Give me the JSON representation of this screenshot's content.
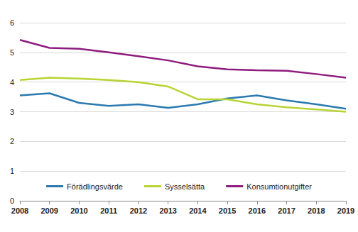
{
  "chart_data": {
    "type": "line",
    "categories": [
      "2008",
      "2009",
      "2010",
      "2011",
      "2012",
      "2013",
      "2014",
      "2015",
      "2016",
      "2017",
      "2018",
      "2019"
    ],
    "series": [
      {
        "name": "Förädlingsvärde",
        "color": "#2a7ab0",
        "values": [
          3.55,
          3.62,
          3.3,
          3.2,
          3.25,
          3.13,
          3.25,
          3.45,
          3.55,
          3.38,
          3.25,
          3.1
        ]
      },
      {
        "name": "Sysselsätta",
        "color": "#b7d433",
        "values": [
          4.07,
          4.15,
          4.12,
          4.07,
          4.0,
          3.85,
          3.42,
          3.42,
          3.25,
          3.15,
          3.08,
          3.0
        ]
      },
      {
        "name": "Konsumtionutgifter",
        "color": "#8e1b7e",
        "values": [
          5.42,
          5.15,
          5.12,
          5.0,
          4.87,
          4.73,
          4.53,
          4.43,
          4.4,
          4.38,
          4.27,
          4.15
        ]
      }
    ],
    "ylim": [
      0,
      6
    ],
    "yticks": [
      0,
      1,
      2,
      3,
      4,
      5,
      6
    ],
    "grid": true,
    "legend": "bottom"
  }
}
